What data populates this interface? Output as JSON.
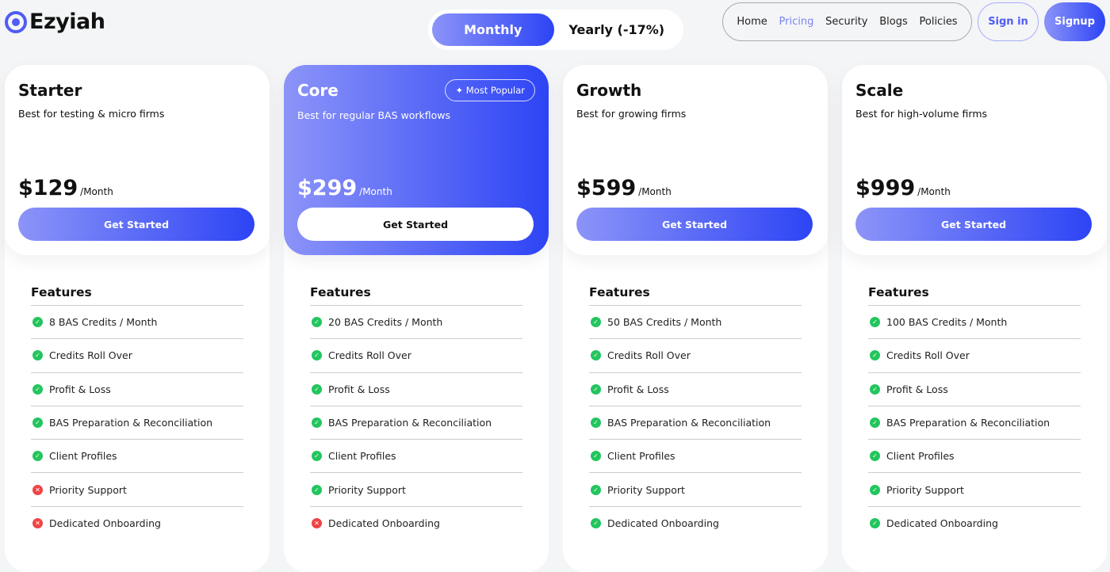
{
  "brand": {
    "name": "Ezyiah",
    "accent": "#2d44f5"
  },
  "billing_toggle": {
    "monthly": "Monthly",
    "yearly": "Yearly (-17%)",
    "selected": "Monthly"
  },
  "nav": {
    "items": [
      "Home",
      "Pricing",
      "Security",
      "Blogs",
      "Policies"
    ],
    "active": "Pricing",
    "sign_in": "Sign in",
    "signup": "Signup"
  },
  "features_heading": "Features",
  "plans": [
    {
      "name": "Starter",
      "tagline": "Best for testing & micro firms",
      "price": "$129",
      "period": "/Month",
      "cta": "Get Started",
      "badge": null,
      "features": [
        {
          "label": "8 BAS Credits / Month",
          "included": true
        },
        {
          "label": "Credits Roll Over",
          "included": true
        },
        {
          "label": "Profit & Loss",
          "included": true
        },
        {
          "label": "BAS Preparation & Reconciliation",
          "included": true
        },
        {
          "label": "Client Profiles",
          "included": true
        },
        {
          "label": "Priority Support",
          "included": false
        },
        {
          "label": "Dedicated Onboarding",
          "included": false
        }
      ]
    },
    {
      "name": "Core",
      "tagline": "Best for regular BAS workflows",
      "price": "$299",
      "period": "/Month",
      "cta": "Get Started",
      "badge": "Most Popular",
      "features": [
        {
          "label": "20 BAS Credits / Month",
          "included": true
        },
        {
          "label": "Credits Roll Over",
          "included": true
        },
        {
          "label": "Profit & Loss",
          "included": true
        },
        {
          "label": "BAS Preparation & Reconciliation",
          "included": true
        },
        {
          "label": "Client Profiles",
          "included": true
        },
        {
          "label": "Priority Support",
          "included": true
        },
        {
          "label": "Dedicated Onboarding",
          "included": false
        }
      ]
    },
    {
      "name": "Growth",
      "tagline": "Best for growing firms",
      "price": "$599",
      "period": "/Month",
      "cta": "Get Started",
      "badge": null,
      "features": [
        {
          "label": "50 BAS Credits / Month",
          "included": true
        },
        {
          "label": "Credits Roll Over",
          "included": true
        },
        {
          "label": "Profit & Loss",
          "included": true
        },
        {
          "label": "BAS Preparation & Reconciliation",
          "included": true
        },
        {
          "label": "Client Profiles",
          "included": true
        },
        {
          "label": "Priority Support",
          "included": true
        },
        {
          "label": "Dedicated Onboarding",
          "included": true
        }
      ]
    },
    {
      "name": "Scale",
      "tagline": "Best for high-volume firms",
      "price": "$999",
      "period": "/Month",
      "cta": "Get Started",
      "badge": null,
      "features": [
        {
          "label": "100 BAS Credits / Month",
          "included": true
        },
        {
          "label": "Credits Roll Over",
          "included": true
        },
        {
          "label": "Profit & Loss",
          "included": true
        },
        {
          "label": "BAS Preparation & Reconciliation",
          "included": true
        },
        {
          "label": "Client Profiles",
          "included": true
        },
        {
          "label": "Priority Support",
          "included": true
        },
        {
          "label": "Dedicated Onboarding",
          "included": true
        }
      ]
    }
  ]
}
